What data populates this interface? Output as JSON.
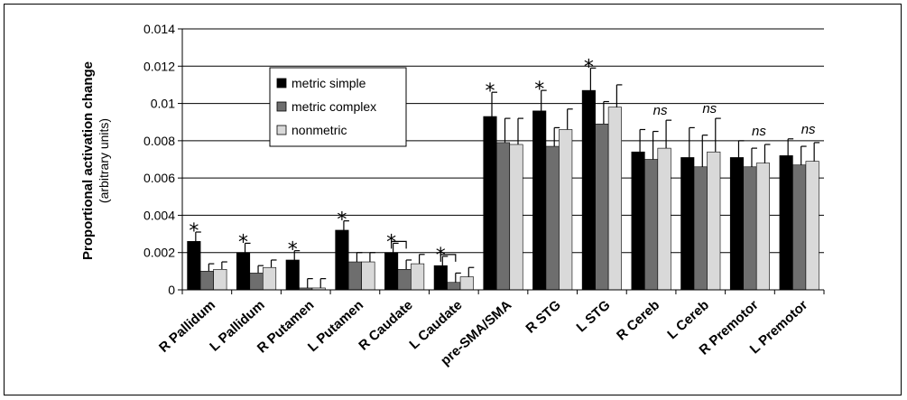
{
  "chart_data": {
    "type": "bar",
    "ylabel": "Proportional activation change",
    "ylabel_sub": "(arbitrary units)",
    "ylim": [
      0,
      0.014
    ],
    "yticks": [
      "0",
      "0.002",
      "0.004",
      "0.006",
      "0.008",
      "0.01",
      "0.012",
      "0.014"
    ],
    "grid": true,
    "legend_position": "top-left",
    "categories": [
      "R Pallidum",
      "L Pallidum",
      "R Putamen",
      "L Putamen",
      "R Caudate",
      "L Caudate",
      "pre-SMA/SMA",
      "R STG",
      "L STG",
      "R Cereb",
      "L Cereb",
      "R Premotor",
      "L Premotor"
    ],
    "series": [
      {
        "name": "metric simple",
        "color": "#000000",
        "values": [
          0.0026,
          0.002,
          0.0016,
          0.0032,
          0.002,
          0.0013,
          0.0093,
          0.0096,
          0.0107,
          0.0074,
          0.0071,
          0.0071,
          0.0072
        ],
        "errors": [
          0.0005,
          0.0005,
          0.0005,
          0.0005,
          0.0005,
          0.0005,
          0.0013,
          0.0011,
          0.0012,
          0.0012,
          0.0016,
          0.0009,
          0.0009
        ]
      },
      {
        "name": "metric complex",
        "color": "#6e6e6e",
        "values": [
          0.001,
          0.0009,
          0.0001,
          0.0015,
          0.0011,
          0.0004,
          0.0079,
          0.0077,
          0.0089,
          0.007,
          0.0066,
          0.0066,
          0.0067
        ],
        "errors": [
          0.0004,
          0.0004,
          0.0005,
          0.0005,
          0.0005,
          0.0005,
          0.0013,
          0.001,
          0.0012,
          0.0015,
          0.0017,
          0.001,
          0.001
        ]
      },
      {
        "name": "nonmetric",
        "color": "#d9d9d9",
        "values": [
          0.0011,
          0.0012,
          0.0001,
          0.0015,
          0.0014,
          0.0007,
          0.0078,
          0.0086,
          0.0098,
          0.0076,
          0.0074,
          0.0068,
          0.0069
        ],
        "errors": [
          0.0004,
          0.0004,
          0.0005,
          0.0005,
          0.0005,
          0.0005,
          0.0014,
          0.0011,
          0.0012,
          0.0015,
          0.0018,
          0.001,
          0.001
        ]
      }
    ],
    "annotations": [
      "*",
      "*",
      "*",
      "*",
      "*",
      "*",
      "*",
      "*",
      "*",
      "ns",
      "ns",
      "ns",
      "ns"
    ]
  }
}
